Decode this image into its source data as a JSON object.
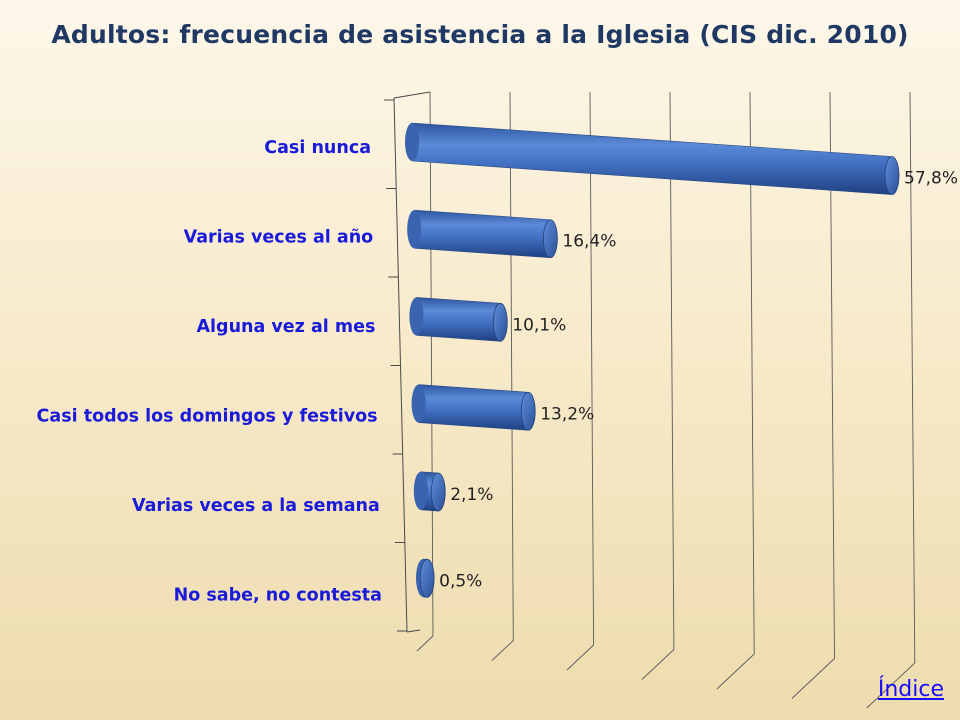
{
  "chart_data": {
    "type": "bar",
    "orientation": "horizontal",
    "style": "3d-cylinder",
    "title": "Adultos: frecuencia de asistencia a la Iglesia (CIS dic. 2010)",
    "categories": [
      "Casi nunca",
      "Varias veces al año",
      "Alguna vez al mes",
      "Casi todos los domingos y festivos",
      "Varias veces a la semana",
      "No sabe, no contesta"
    ],
    "values": [
      57.8,
      16.4,
      10.1,
      13.2,
      2.1,
      0.5
    ],
    "value_labels": [
      "57,8%",
      "16,4%",
      "10,1%",
      "13,2%",
      "2,1%",
      "0,5%"
    ],
    "xlim": [
      0,
      60
    ],
    "grid": true,
    "legend": "none",
    "colors": {
      "bar": "#4472c4",
      "bar_dark": "#2e5597",
      "category_text": "#1a1adb",
      "title": "#1f3864"
    }
  },
  "nav": {
    "index_link": "Índice"
  }
}
